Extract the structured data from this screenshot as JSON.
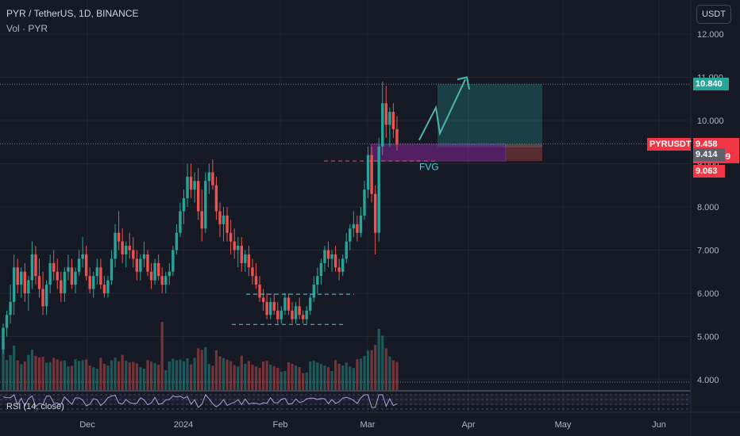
{
  "header": {
    "title": "PYR / TetherUS, 1D, BINANCE",
    "volume_label": "Vol · PYR"
  },
  "currency_button": "USDT",
  "rsi_label": "RSI (14, close)",
  "symbol_tag": "PYRUSDT",
  "fvg_label": "FVG",
  "price_tags": {
    "target": "10.840",
    "last": "9.458",
    "countdown": "06:14:09",
    "level_gray": "9.414",
    "level_red": "9.063"
  },
  "colors": {
    "background": "#161a25",
    "up": "#26a69a",
    "down": "#ef5350",
    "target_tag": "#26a69a",
    "last_tag": "#f23645",
    "gray_tag": "#5d606b",
    "fvg_zone": "#9c27b0",
    "dashed_levels": "#4dd0e1",
    "rsi_line": "#b39ddb",
    "path": "#4db6ac"
  },
  "chart_data": {
    "type": "candlestick",
    "symbol": "PYR / TetherUS",
    "timeframe": "1D",
    "exchange": "BINANCE",
    "y_axis": {
      "range": [
        3.8,
        12.3
      ],
      "ticks": [
        "12.000",
        "11.000",
        "10.000",
        "9.000",
        "8.000",
        "7.000",
        "6.000",
        "5.000",
        "4.000"
      ]
    },
    "x_axis": {
      "ticks": [
        "Dec",
        "2024",
        "Feb",
        "Mar",
        "Apr",
        "May",
        "Jun"
      ]
    },
    "grid": true,
    "last_price": 9.458,
    "levels": {
      "target_top": 10.84,
      "entry": 9.414,
      "stop": 9.063
    },
    "candles": [
      [
        4.7,
        5.3,
        4.6,
        5.2
      ],
      [
        5.2,
        5.6,
        5.0,
        5.5
      ],
      [
        5.5,
        6.2,
        5.3,
        5.8
      ],
      [
        5.8,
        6.9,
        5.5,
        6.6
      ],
      [
        6.6,
        6.8,
        6.0,
        6.2
      ],
      [
        6.2,
        6.6,
        5.9,
        6.5
      ],
      [
        6.5,
        6.7,
        5.8,
        6.0
      ],
      [
        6.0,
        6.4,
        5.6,
        6.3
      ],
      [
        6.3,
        7.2,
        6.1,
        6.9
      ],
      [
        6.9,
        7.1,
        6.2,
        6.4
      ],
      [
        6.4,
        6.8,
        5.9,
        6.1
      ],
      [
        6.1,
        6.5,
        5.5,
        5.7
      ],
      [
        5.7,
        6.3,
        5.5,
        6.2
      ],
      [
        6.2,
        6.9,
        6.0,
        6.7
      ],
      [
        6.7,
        7.0,
        6.3,
        6.5
      ],
      [
        6.5,
        6.8,
        6.1,
        6.3
      ],
      [
        6.3,
        6.5,
        5.8,
        6.0
      ],
      [
        6.0,
        6.6,
        5.8,
        6.5
      ],
      [
        6.5,
        6.9,
        6.3,
        6.6
      ],
      [
        6.6,
        6.8,
        6.1,
        6.2
      ],
      [
        6.2,
        6.6,
        6.0,
        6.5
      ],
      [
        6.5,
        7.0,
        6.4,
        6.8
      ],
      [
        6.8,
        7.3,
        6.6,
        6.9
      ],
      [
        6.9,
        7.1,
        6.3,
        6.4
      ],
      [
        6.4,
        6.6,
        6.0,
        6.1
      ],
      [
        6.1,
        6.5,
        5.9,
        6.4
      ],
      [
        6.4,
        6.8,
        6.2,
        6.6
      ],
      [
        6.6,
        6.8,
        6.1,
        6.2
      ],
      [
        6.2,
        6.4,
        5.9,
        6.0
      ],
      [
        6.0,
        6.4,
        5.9,
        6.3
      ],
      [
        6.3,
        7.0,
        6.2,
        6.8
      ],
      [
        6.8,
        7.6,
        6.6,
        7.4
      ],
      [
        7.4,
        7.9,
        7.0,
        7.2
      ],
      [
        7.2,
        7.5,
        6.7,
        6.9
      ],
      [
        6.9,
        7.2,
        6.6,
        7.1
      ],
      [
        7.1,
        7.4,
        6.8,
        7.0
      ],
      [
        7.0,
        7.3,
        6.6,
        6.8
      ],
      [
        6.8,
        7.0,
        6.3,
        6.5
      ],
      [
        6.5,
        6.9,
        6.3,
        6.8
      ],
      [
        6.8,
        7.2,
        6.6,
        6.9
      ],
      [
        6.9,
        7.0,
        6.4,
        6.5
      ],
      [
        6.5,
        6.7,
        6.1,
        6.3
      ],
      [
        6.3,
        6.8,
        6.2,
        6.7
      ],
      [
        6.7,
        6.9,
        6.3,
        6.4
      ],
      [
        6.4,
        6.6,
        6.0,
        6.2
      ],
      [
        6.2,
        6.5,
        6.0,
        6.4
      ],
      [
        6.4,
        6.7,
        6.2,
        6.5
      ],
      [
        6.5,
        7.1,
        6.4,
        7.0
      ],
      [
        7.0,
        7.6,
        6.9,
        7.4
      ],
      [
        7.4,
        8.1,
        7.3,
        7.9
      ],
      [
        7.9,
        8.4,
        7.6,
        8.2
      ],
      [
        8.2,
        9.0,
        8.0,
        8.7
      ],
      [
        8.7,
        9.0,
        8.2,
        8.4
      ],
      [
        8.4,
        8.8,
        8.1,
        8.6
      ],
      [
        8.6,
        8.9,
        7.7,
        7.9
      ],
      [
        7.9,
        8.4,
        7.2,
        7.5
      ],
      [
        7.5,
        8.8,
        7.4,
        8.6
      ],
      [
        8.6,
        9.0,
        8.3,
        8.8
      ],
      [
        8.8,
        9.1,
        8.4,
        8.5
      ],
      [
        8.5,
        8.7,
        7.7,
        7.9
      ],
      [
        7.9,
        8.1,
        7.3,
        7.6
      ],
      [
        7.6,
        8.0,
        7.2,
        7.8
      ],
      [
        7.8,
        8.0,
        7.2,
        7.4
      ],
      [
        7.4,
        7.7,
        6.9,
        7.2
      ],
      [
        7.2,
        7.5,
        6.8,
        7.0
      ],
      [
        7.0,
        7.3,
        6.6,
        7.1
      ],
      [
        7.1,
        7.3,
        6.5,
        6.7
      ],
      [
        6.7,
        7.0,
        6.5,
        6.9
      ],
      [
        6.9,
        7.1,
        6.4,
        6.6
      ],
      [
        6.6,
        6.8,
        6.2,
        6.4
      ],
      [
        6.4,
        6.7,
        6.1,
        6.2
      ],
      [
        6.2,
        6.4,
        5.8,
        5.9
      ],
      [
        5.9,
        6.1,
        5.6,
        5.8
      ],
      [
        5.8,
        6.0,
        5.4,
        5.5
      ],
      [
        5.5,
        5.9,
        5.4,
        5.8
      ],
      [
        5.8,
        6.0,
        5.5,
        5.6
      ],
      [
        5.6,
        5.8,
        5.3,
        5.4
      ],
      [
        5.4,
        5.7,
        5.3,
        5.6
      ],
      [
        5.6,
        6.0,
        5.5,
        5.9
      ],
      [
        5.9,
        6.0,
        5.5,
        5.6
      ],
      [
        5.6,
        5.8,
        5.3,
        5.4
      ],
      [
        5.4,
        5.8,
        5.3,
        5.7
      ],
      [
        5.7,
        5.9,
        5.4,
        5.5
      ],
      [
        5.5,
        5.6,
        5.3,
        5.4
      ],
      [
        5.4,
        5.7,
        5.3,
        5.6
      ],
      [
        5.6,
        6.0,
        5.5,
        5.9
      ],
      [
        5.9,
        6.4,
        5.8,
        6.2
      ],
      [
        6.2,
        6.6,
        6.0,
        6.4
      ],
      [
        6.4,
        6.8,
        6.2,
        6.7
      ],
      [
        6.7,
        7.1,
        6.5,
        7.0
      ],
      [
        7.0,
        7.2,
        6.6,
        6.8
      ],
      [
        6.8,
        7.0,
        6.5,
        6.9
      ],
      [
        6.9,
        7.1,
        6.5,
        6.6
      ],
      [
        6.6,
        6.8,
        6.3,
        6.5
      ],
      [
        6.5,
        6.9,
        6.4,
        6.8
      ],
      [
        6.8,
        7.4,
        6.7,
        7.2
      ],
      [
        7.2,
        7.6,
        7.0,
        7.5
      ],
      [
        7.5,
        7.9,
        7.3,
        7.6
      ],
      [
        7.6,
        7.8,
        7.2,
        7.4
      ],
      [
        7.4,
        8.0,
        7.3,
        7.8
      ],
      [
        7.8,
        8.6,
        7.7,
        8.4
      ],
      [
        8.4,
        9.4,
        8.2,
        9.2
      ],
      [
        9.2,
        9.4,
        8.1,
        8.3
      ],
      [
        8.3,
        8.5,
        6.9,
        7.4
      ],
      [
        7.4,
        9.6,
        7.2,
        9.4
      ],
      [
        9.4,
        10.9,
        9.2,
        10.4
      ],
      [
        10.4,
        10.8,
        9.6,
        9.9
      ],
      [
        9.9,
        10.3,
        9.4,
        10.2
      ],
      [
        10.2,
        10.4,
        9.6,
        9.8
      ],
      [
        9.8,
        10.1,
        9.3,
        9.458
      ]
    ]
  }
}
